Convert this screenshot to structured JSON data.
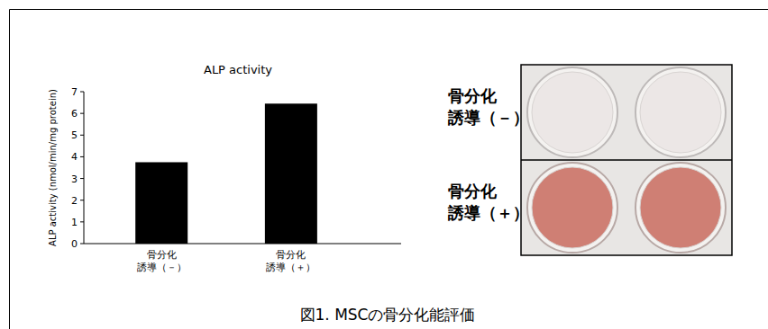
{
  "chart_data": {
    "type": "bar",
    "title": "ALP activity",
    "y_label": "ALP activity (nmol/min/mg protein)",
    "categories": [
      "骨分化\n誘導（－）",
      "骨分化\n誘導（＋）"
    ],
    "values": [
      3.75,
      6.45
    ],
    "color": "#000000",
    "ylim": [
      0,
      7
    ],
    "yticks": [
      0,
      1,
      2,
      3,
      4,
      5,
      6,
      7
    ],
    "grid": false
  },
  "photo": {
    "labels": [
      "骨分化\n誘導（－）",
      "骨分化\n誘導（＋）"
    ]
  },
  "caption": "図1. MSCの骨分化能評価"
}
